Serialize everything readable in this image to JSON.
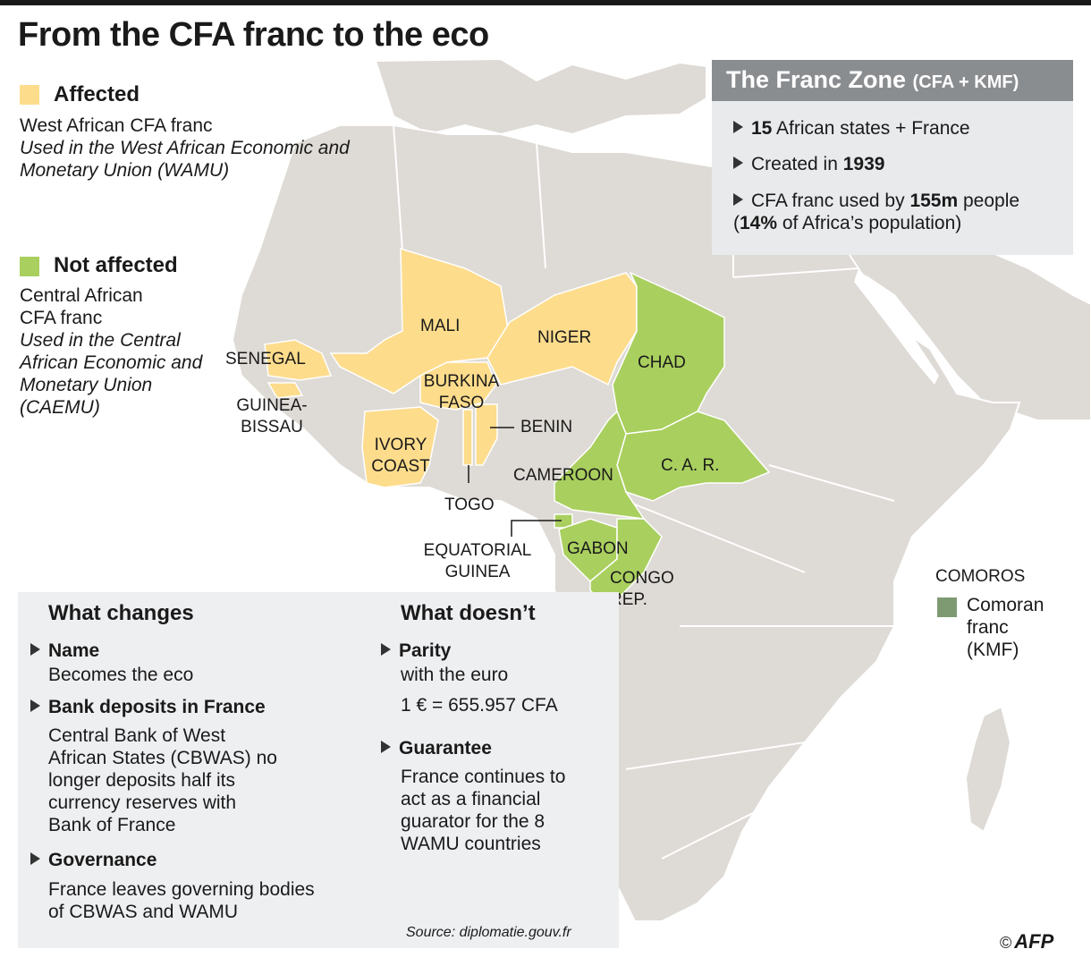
{
  "title": "From the CFA franc to the eco",
  "colors": {
    "affected": "#fddc8c",
    "not_affected": "#a9cf5e",
    "comoros": "#7e9a73",
    "land": "#dedad5",
    "sea": "#ffffff"
  },
  "legend": {
    "affected": {
      "label": "Affected",
      "currency": "West African CFA franc",
      "desc": "Used in the West African Economic and Monetary Union (WAMU)"
    },
    "not_affected": {
      "label": "Not affected",
      "currency": "Central African CFA franc",
      "desc": "Used in the Central African Economic and Monetary Union (CAEMU)"
    }
  },
  "map_labels": {
    "mali": "MALI",
    "niger": "NIGER",
    "chad": "CHAD",
    "senegal": "SENEGAL",
    "burkina": "BURKINA FASO",
    "guinea_bissau": "GUINEA-BISSAU",
    "benin": "BENIN",
    "ivory_coast": "IVORY COAST",
    "togo": "TOGO",
    "cameroon": "CAMEROON",
    "car": "C. A. R.",
    "eq_guinea": "EQUATORIAL GUINEA",
    "gabon": "GABON",
    "congo": "CONGO REP.",
    "comoros": "COMOROS",
    "comoran_franc": "Comoran franc (KMF)"
  },
  "franc_zone": {
    "title": "The Franc Zone",
    "subtitle": "(CFA + KMF)",
    "items": [
      {
        "bold": "15",
        "text": " African states + France"
      },
      {
        "pre": "Created in ",
        "bold": "1939"
      },
      {
        "pre": "CFA franc used by ",
        "bold": "155m",
        "text": " people",
        "bold2": "14%",
        "text2": " of Africa’s population"
      }
    ]
  },
  "changes": {
    "heading": "What changes",
    "items": [
      {
        "title": "Name",
        "text": "Becomes the eco"
      },
      {
        "title": "Bank deposits in France",
        "text": "Central Bank of West African States (CBWAS) no longer deposits half its currency reserves with Bank of France"
      },
      {
        "title": "Governance",
        "text": "France leaves governing bodies of CBWAS and WAMU"
      }
    ]
  },
  "no_changes": {
    "heading": "What doesn’t",
    "items": [
      {
        "title": "Parity",
        "text": "with the euro",
        "extra": "1 € = 655.957 CFA"
      },
      {
        "title": "Guarantee",
        "text": "France continues to act as a financial guarator for the 8 WAMU countries"
      }
    ]
  },
  "source": "Source: diplomatie.gouv.fr",
  "credit": "AFP",
  "credit_symbol": "©"
}
